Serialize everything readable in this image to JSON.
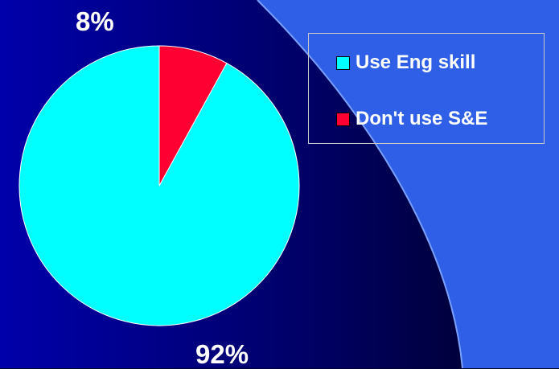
{
  "chart_data": {
    "type": "pie",
    "categories": [
      "Use Eng skill",
      "Don't use S&E"
    ],
    "values": [
      92,
      8
    ],
    "value_labels": [
      "92%",
      "8%"
    ],
    "colors": [
      "#00ffff",
      "#ff0033"
    ],
    "legend_position": "top-right",
    "slice_order": "clockwise from top"
  },
  "slide": {
    "background_colors": [
      "#000033",
      "#0000aa",
      "#3060ee"
    ]
  }
}
